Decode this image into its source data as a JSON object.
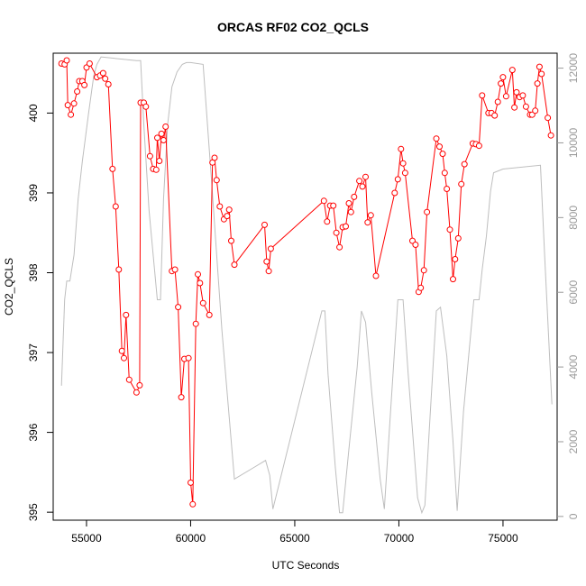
{
  "chart_data": {
    "type": "line",
    "title": "ORCAS RF02 CO2_QCLS",
    "xlabel": "UTC Seconds",
    "ylabel": "CO2_QCLS",
    "xlim": [
      53400,
      77600
    ],
    "ylim": [
      394.9,
      400.75
    ],
    "y2lim": [
      -100,
      12400
    ],
    "x_ticks": [
      55000,
      60000,
      65000,
      70000,
      75000
    ],
    "y_ticks": [
      395,
      396,
      397,
      398,
      399,
      400
    ],
    "y2_ticks": [
      0,
      2000,
      4000,
      6000,
      8000,
      10000,
      12000
    ],
    "colors": {
      "series": "#ff0000",
      "secondary": "#bebebe",
      "axis": "#000000",
      "y2_axis": "#9a9a9a"
    },
    "series": [
      {
        "style": "line+points",
        "axis": "left",
        "points": [
          [
            53800,
            400.62
          ],
          [
            53950,
            400.61
          ],
          [
            54050,
            400.66
          ],
          [
            54100,
            400.1
          ],
          [
            54250,
            399.98
          ],
          [
            54400,
            400.12
          ],
          [
            54550,
            400.27
          ],
          [
            54650,
            400.4
          ],
          [
            54800,
            400.4
          ],
          [
            54900,
            400.35
          ],
          [
            55000,
            400.57
          ],
          [
            55150,
            400.62
          ],
          [
            55500,
            400.45
          ],
          [
            55650,
            400.47
          ],
          [
            55800,
            400.5
          ],
          [
            55900,
            400.43
          ],
          [
            56050,
            400.36
          ],
          [
            56250,
            399.3
          ],
          [
            56400,
            398.83
          ],
          [
            56550,
            398.04
          ],
          [
            56700,
            397.02
          ],
          [
            56800,
            396.93
          ],
          [
            56900,
            397.47
          ],
          [
            57050,
            396.66
          ],
          [
            57400,
            396.5
          ],
          [
            57550,
            396.59
          ],
          [
            57600,
            400.13
          ],
          [
            57750,
            400.13
          ],
          [
            57850,
            400.08
          ],
          [
            58050,
            399.46
          ],
          [
            58200,
            399.3
          ],
          [
            58350,
            399.29
          ],
          [
            58400,
            399.69
          ],
          [
            58500,
            399.4
          ],
          [
            58600,
            399.74
          ],
          [
            58700,
            399.66
          ],
          [
            58800,
            399.83
          ],
          [
            59100,
            398.02
          ],
          [
            59250,
            398.04
          ],
          [
            59400,
            397.57
          ],
          [
            59550,
            396.44
          ],
          [
            59700,
            396.92
          ],
          [
            59900,
            396.93
          ],
          [
            60000,
            395.37
          ],
          [
            60100,
            395.1
          ],
          [
            60250,
            397.36
          ],
          [
            60350,
            397.98
          ],
          [
            60450,
            397.87
          ],
          [
            60600,
            397.62
          ],
          [
            60900,
            397.47
          ],
          [
            61050,
            399.38
          ],
          [
            61150,
            399.44
          ],
          [
            61250,
            399.16
          ],
          [
            61400,
            398.83
          ],
          [
            61600,
            398.67
          ],
          [
            61750,
            398.71
          ],
          [
            61850,
            398.79
          ],
          [
            61950,
            398.4
          ],
          [
            62100,
            398.1
          ],
          [
            63550,
            398.6
          ],
          [
            63650,
            398.14
          ],
          [
            63750,
            398.02
          ],
          [
            63850,
            398.3
          ],
          [
            66400,
            398.9
          ],
          [
            66550,
            398.64
          ],
          [
            66700,
            398.84
          ],
          [
            66850,
            398.84
          ],
          [
            67000,
            398.5
          ],
          [
            67150,
            398.32
          ],
          [
            67300,
            398.57
          ],
          [
            67450,
            398.58
          ],
          [
            67600,
            398.87
          ],
          [
            67700,
            398.76
          ],
          [
            67850,
            398.95
          ],
          [
            68100,
            399.15
          ],
          [
            68250,
            399.08
          ],
          [
            68400,
            399.2
          ],
          [
            68500,
            398.63
          ],
          [
            68650,
            398.72
          ],
          [
            68900,
            397.96
          ],
          [
            69800,
            399.0
          ],
          [
            69950,
            399.17
          ],
          [
            70100,
            399.55
          ],
          [
            70200,
            399.37
          ],
          [
            70300,
            399.25
          ],
          [
            70650,
            398.4
          ],
          [
            70800,
            398.35
          ],
          [
            70950,
            397.76
          ],
          [
            71050,
            397.81
          ],
          [
            71200,
            398.03
          ],
          [
            71350,
            398.76
          ],
          [
            71800,
            399.68
          ],
          [
            71950,
            399.58
          ],
          [
            72100,
            399.49
          ],
          [
            72200,
            399.25
          ],
          [
            72300,
            399.05
          ],
          [
            72450,
            398.54
          ],
          [
            72600,
            397.92
          ],
          [
            72700,
            398.17
          ],
          [
            72850,
            398.43
          ],
          [
            73000,
            399.11
          ],
          [
            73150,
            399.36
          ],
          [
            73550,
            399.62
          ],
          [
            73700,
            399.61
          ],
          [
            73850,
            399.59
          ],
          [
            74000,
            400.22
          ],
          [
            74300,
            400.0
          ],
          [
            74450,
            400.0
          ],
          [
            74600,
            399.97
          ],
          [
            74750,
            400.14
          ],
          [
            74900,
            400.37
          ],
          [
            75000,
            400.45
          ],
          [
            75150,
            400.21
          ],
          [
            75450,
            400.54
          ],
          [
            75550,
            400.07
          ],
          [
            75650,
            400.26
          ],
          [
            75800,
            400.2
          ],
          [
            75950,
            400.22
          ],
          [
            76100,
            400.08
          ],
          [
            76300,
            399.98
          ],
          [
            76400,
            399.98
          ],
          [
            76550,
            400.03
          ],
          [
            76650,
            400.37
          ],
          [
            76750,
            400.58
          ],
          [
            76850,
            400.49
          ],
          [
            77150,
            399.94
          ],
          [
            77300,
            399.72
          ]
        ]
      },
      {
        "style": "line",
        "axis": "right",
        "points": [
          [
            53800,
            3500
          ],
          [
            53950,
            5800
          ],
          [
            54050,
            6300
          ],
          [
            54200,
            6300
          ],
          [
            54400,
            7000
          ],
          [
            54600,
            8500
          ],
          [
            54800,
            9500
          ],
          [
            55100,
            10800
          ],
          [
            55350,
            11800
          ],
          [
            55500,
            12100
          ],
          [
            55700,
            12300
          ],
          [
            57400,
            12200
          ],
          [
            57600,
            12200
          ],
          [
            57750,
            10500
          ],
          [
            58000,
            8200
          ],
          [
            58400,
            5800
          ],
          [
            58550,
            5800
          ],
          [
            58700,
            8500
          ],
          [
            58900,
            10500
          ],
          [
            59100,
            11500
          ],
          [
            59350,
            11900
          ],
          [
            59600,
            12100
          ],
          [
            59800,
            12150
          ],
          [
            60000,
            12150
          ],
          [
            60600,
            12100
          ],
          [
            61000,
            9000
          ],
          [
            61500,
            5000
          ],
          [
            62100,
            1000
          ],
          [
            63000,
            1300
          ],
          [
            63600,
            1500
          ],
          [
            63800,
            1100
          ],
          [
            63950,
            200
          ],
          [
            66300,
            5500
          ],
          [
            66450,
            5500
          ],
          [
            66600,
            3800
          ],
          [
            66950,
            1300
          ],
          [
            67150,
            100
          ],
          [
            67300,
            100
          ],
          [
            67600,
            1800
          ],
          [
            68000,
            4000
          ],
          [
            68200,
            5500
          ],
          [
            68400,
            5200
          ],
          [
            68700,
            3300
          ],
          [
            69100,
            1000
          ],
          [
            69300,
            200
          ],
          [
            69600,
            2800
          ],
          [
            69950,
            5800
          ],
          [
            70200,
            5800
          ],
          [
            70450,
            3800
          ],
          [
            70900,
            500
          ],
          [
            71100,
            100
          ],
          [
            71250,
            300
          ],
          [
            71500,
            2700
          ],
          [
            71800,
            5500
          ],
          [
            72000,
            5600
          ],
          [
            72300,
            4300
          ],
          [
            72600,
            2000
          ],
          [
            72800,
            150
          ],
          [
            73100,
            2800
          ],
          [
            73600,
            5800
          ],
          [
            73850,
            5800
          ],
          [
            74000,
            6600
          ],
          [
            74200,
            7500
          ],
          [
            74400,
            8700
          ],
          [
            74550,
            9200
          ],
          [
            75000,
            9300
          ],
          [
            76800,
            9400
          ],
          [
            77000,
            7000
          ],
          [
            77350,
            3000
          ]
        ]
      }
    ]
  }
}
